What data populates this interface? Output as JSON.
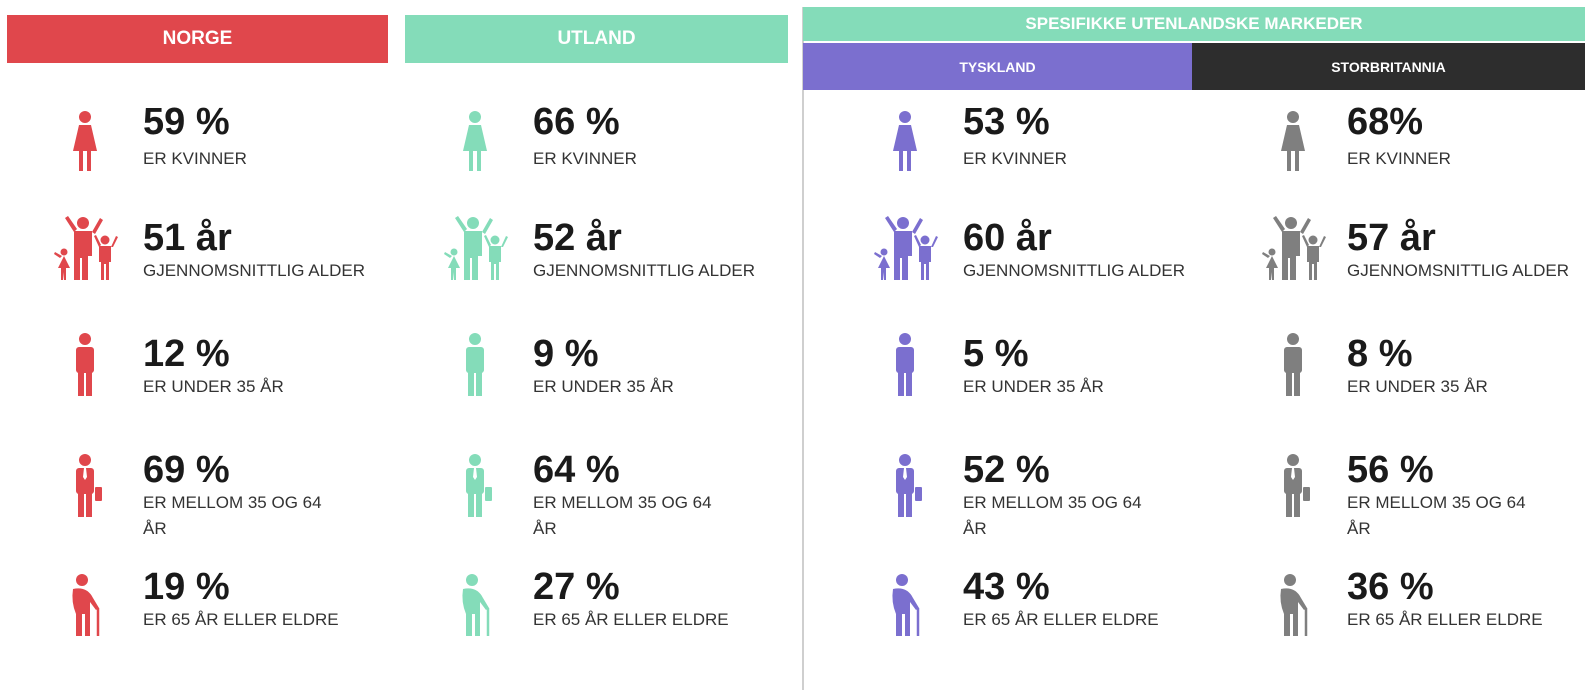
{
  "group": {
    "title": "SPESIFIKKE UTENLANDSKE MARKEDER",
    "color": "#84dcb9"
  },
  "columns": [
    {
      "title": "NORGE",
      "color": "#e0474c",
      "stats": [
        {
          "value": "59 %",
          "label": "ER KVINNER"
        },
        {
          "value": "51 år",
          "label": "GJENNOMSNITTLIG ALDER"
        },
        {
          "value": "12 %",
          "label": "ER UNDER 35 ÅR"
        },
        {
          "value": "69 %",
          "label": "ER MELLOM 35 OG 64 ÅR"
        },
        {
          "value": "19 %",
          "label": "ER 65 ÅR ELLER ELDRE"
        }
      ]
    },
    {
      "title": "UTLAND",
      "color": "#84dcb9",
      "stats": [
        {
          "value": "66 %",
          "label": "ER KVINNER"
        },
        {
          "value": "52 år",
          "label": "GJENNOMSNITTLIG ALDER"
        },
        {
          "value": "9 %",
          "label": "ER UNDER 35 ÅR"
        },
        {
          "value": "64 %",
          "label": "ER MELLOM 35 OG 64 ÅR"
        },
        {
          "value": "27 %",
          "label": "ER 65 ÅR ELLER ELDRE"
        }
      ]
    },
    {
      "title": "TYSKLAND",
      "color": "#7b6fcf",
      "stats": [
        {
          "value": "53 %",
          "label": "ER KVINNER"
        },
        {
          "value": "60 år",
          "label": "GJENNOMSNITTLIG ALDER"
        },
        {
          "value": "5 %",
          "label": "ER UNDER 35 ÅR"
        },
        {
          "value": "52 %",
          "label": "ER MELLOM 35 OG 64 ÅR"
        },
        {
          "value": "43 %",
          "label": "ER 65 ÅR ELLER ELDRE"
        }
      ]
    },
    {
      "title": "STORBRITANNIA",
      "color": "#2d2d2d",
      "icon_color": "#7f7f7f",
      "stats": [
        {
          "value": "68%",
          "label": "ER KVINNER"
        },
        {
          "value": "57 år",
          "label": "GJENNOMSNITTLIG ALDER"
        },
        {
          "value": "8 %",
          "label": "ER UNDER 35 ÅR"
        },
        {
          "value": "56 %",
          "label": "ER MELLOM 35 OG 64 ÅR"
        },
        {
          "value": "36 %",
          "label": "ER 65 ÅR ELLER ELDRE"
        }
      ]
    }
  ]
}
